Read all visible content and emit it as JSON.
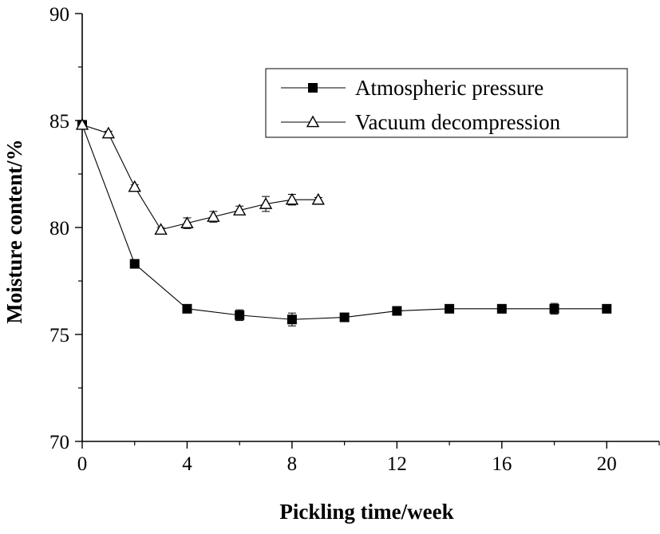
{
  "chart_data": {
    "type": "line",
    "title": "",
    "xlabel": "Pickling time/week",
    "ylabel": "Moisture content/%",
    "xlim": [
      0,
      22
    ],
    "ylim": [
      70,
      90
    ],
    "xticks": [
      0,
      4,
      8,
      12,
      16,
      20
    ],
    "yticks": [
      70,
      75,
      80,
      85,
      90
    ],
    "grid": false,
    "legend": "top-right",
    "series": [
      {
        "name": "Atmospheric pressure",
        "marker": "filled-square",
        "color": "#000000",
        "x": [
          0,
          2,
          4,
          6,
          8,
          10,
          12,
          14,
          16,
          18,
          20
        ],
        "y": [
          84.8,
          78.3,
          76.2,
          75.9,
          75.7,
          75.8,
          76.1,
          76.2,
          76.2,
          76.2,
          76.2
        ],
        "error": [
          0.1,
          0.1,
          0.1,
          0.25,
          0.3,
          0.15,
          0.2,
          0.1,
          0.2,
          0.25,
          0.1
        ]
      },
      {
        "name": "Vacuum decompression",
        "marker": "open-triangle",
        "color": "#000000",
        "x": [
          0,
          1,
          2,
          3,
          4,
          5,
          6,
          7,
          8,
          9
        ],
        "y": [
          84.8,
          84.4,
          81.9,
          79.9,
          80.2,
          80.5,
          80.8,
          81.1,
          81.3,
          81.3
        ],
        "error": [
          0.1,
          0.1,
          0.1,
          0.1,
          0.25,
          0.25,
          0.2,
          0.35,
          0.25,
          0.1
        ]
      }
    ]
  }
}
